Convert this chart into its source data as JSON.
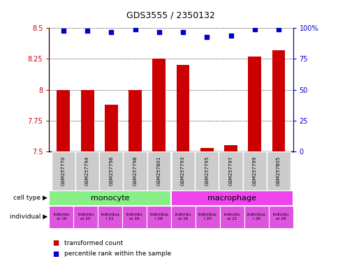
{
  "title": "GDS3555 / 2350132",
  "samples": [
    "GSM257770",
    "GSM257794",
    "GSM257796",
    "GSM257798",
    "GSM257801",
    "GSM257793",
    "GSM257795",
    "GSM257797",
    "GSM257799",
    "GSM257805"
  ],
  "bar_values": [
    8.0,
    8.0,
    7.88,
    8.0,
    8.25,
    8.2,
    7.53,
    7.55,
    8.27,
    8.32
  ],
  "dot_values": [
    98,
    98,
    97,
    99,
    97,
    97,
    93,
    94,
    99,
    99
  ],
  "bar_color": "#cc0000",
  "dot_color": "#0000cc",
  "ylim_left": [
    7.5,
    8.5
  ],
  "ylim_right": [
    0,
    100
  ],
  "yticks_left": [
    7.5,
    7.75,
    8.0,
    8.25,
    8.5
  ],
  "ytick_labels_left": [
    "7.5",
    "7.75",
    "8",
    "8.25",
    "8.5"
  ],
  "yticks_right": [
    0,
    25,
    50,
    75,
    100
  ],
  "ytick_labels_right": [
    "0",
    "25",
    "50",
    "75",
    "100%"
  ],
  "cell_type_labels": [
    "monocyte",
    "macrophage"
  ],
  "cell_type_color_monocyte": "#88ee88",
  "cell_type_color_macrophage": "#ee44ee",
  "individual_labels": [
    "individu\nal 16",
    "individu\nal 20",
    "individua\nl 21",
    "individu\nal 26",
    "individua\nl 28",
    "individu\nal 16",
    "individua\nl 20",
    "individu\nal 21",
    "individua\nl 26",
    "individu\nal 28"
  ],
  "individual_color": "#dd55dd",
  "row_label_cell_type": "cell type",
  "row_label_individual": "individual",
  "legend_bar_label": "transformed count",
  "legend_dot_label": "percentile rank within the sample",
  "sample_bg_color": "#cccccc",
  "sample_sep_color": "white"
}
